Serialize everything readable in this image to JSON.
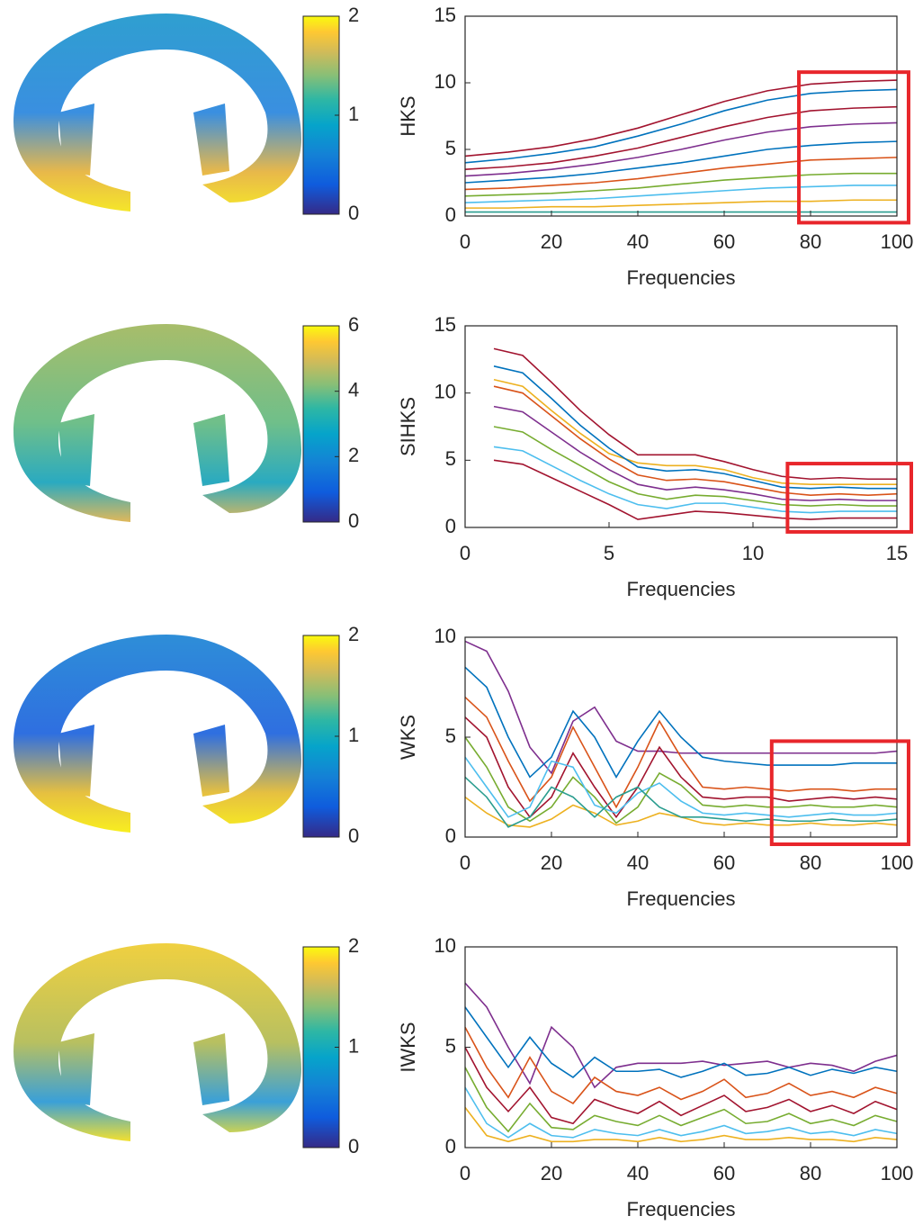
{
  "chart_data": [
    {
      "type": "line",
      "ylabel": "HKS",
      "xlabel": "Frequencies",
      "x": [
        0,
        10,
        20,
        30,
        40,
        50,
        60,
        70,
        80,
        90,
        100
      ],
      "xlim": [
        0,
        100
      ],
      "ylim": [
        0,
        15
      ],
      "xticks": [
        0,
        20,
        40,
        60,
        80,
        100
      ],
      "yticks": [
        0,
        5,
        10,
        15
      ],
      "colorbar": {
        "clim": [
          0,
          2
        ],
        "ticks": [
          0,
          1,
          2
        ]
      },
      "highlight": {
        "x": [
          77.3,
          102.7
        ],
        "y": [
          -0.5,
          10.8
        ],
        "color": "#e8262b"
      },
      "series": [
        {
          "color": "#A2142F",
          "values": [
            4.5,
            4.8,
            5.2,
            5.8,
            6.6,
            7.6,
            8.6,
            9.4,
            9.9,
            10.1,
            10.2
          ]
        },
        {
          "color": "#0072BD",
          "values": [
            4,
            4.3,
            4.7,
            5.2,
            6,
            6.9,
            7.9,
            8.7,
            9.2,
            9.4,
            9.5
          ]
        },
        {
          "color": "#A2142F",
          "values": [
            3.5,
            3.7,
            4,
            4.5,
            5.1,
            5.9,
            6.7,
            7.4,
            7.9,
            8.1,
            8.2
          ]
        },
        {
          "color": "#7E2F8E",
          "values": [
            3,
            3.2,
            3.5,
            3.9,
            4.4,
            5,
            5.7,
            6.3,
            6.7,
            6.9,
            7
          ]
        },
        {
          "color": "#0072BD",
          "values": [
            2.5,
            2.7,
            2.9,
            3.2,
            3.6,
            4,
            4.5,
            5,
            5.3,
            5.5,
            5.6
          ]
        },
        {
          "color": "#D95319",
          "values": [
            2,
            2.1,
            2.3,
            2.5,
            2.8,
            3.2,
            3.6,
            3.9,
            4.2,
            4.3,
            4.4
          ]
        },
        {
          "color": "#77AC30",
          "values": [
            1.5,
            1.6,
            1.7,
            1.9,
            2.1,
            2.4,
            2.7,
            2.9,
            3.1,
            3.2,
            3.2
          ]
        },
        {
          "color": "#4DBEEE",
          "values": [
            1,
            1.1,
            1.2,
            1.3,
            1.5,
            1.7,
            1.9,
            2.1,
            2.2,
            2.3,
            2.3
          ]
        },
        {
          "color": "#EDB120",
          "values": [
            0.6,
            0.6,
            0.7,
            0.7,
            0.8,
            0.9,
            1,
            1.1,
            1.1,
            1.2,
            1.2
          ]
        },
        {
          "color": "#2a9d8f",
          "values": [
            0.3,
            0.3,
            0.3,
            0.3,
            0.3,
            0.3,
            0.3,
            0.3,
            0.3,
            0.3,
            0.3
          ]
        }
      ]
    },
    {
      "type": "line",
      "ylabel": "SIHKS",
      "xlabel": "Frequencies",
      "x": [
        1,
        2,
        3,
        4,
        5,
        6,
        7,
        8,
        9,
        10,
        11,
        12,
        13,
        14,
        15
      ],
      "xlim": [
        0,
        15
      ],
      "ylim": [
        0,
        15
      ],
      "xticks": [
        0,
        5,
        10,
        15
      ],
      "yticks": [
        0,
        5,
        10,
        15
      ],
      "colorbar": {
        "clim": [
          0,
          6
        ],
        "ticks": [
          0,
          2,
          4,
          6
        ]
      },
      "highlight": {
        "x": [
          11.2,
          15.5
        ],
        "y": [
          -0.33,
          4.75
        ],
        "color": "#e8262b"
      },
      "series": [
        {
          "color": "#A2142F",
          "values": [
            13.3,
            12.8,
            10.8,
            8.7,
            6.9,
            5.4,
            5.4,
            5.4,
            4.9,
            4.3,
            3.8,
            3.6,
            3.7,
            3.6,
            3.6
          ]
        },
        {
          "color": "#EDB120",
          "values": [
            11,
            10.5,
            8.7,
            7,
            5.5,
            4.8,
            4.6,
            4.6,
            4.3,
            3.7,
            3.3,
            3.2,
            3.2,
            3.2,
            3.2
          ]
        },
        {
          "color": "#0072BD",
          "values": [
            12,
            11.5,
            9.6,
            7.6,
            5.9,
            4.5,
            4.2,
            4.3,
            4,
            3.5,
            3,
            2.9,
            3,
            2.9,
            2.9
          ]
        },
        {
          "color": "#D95319",
          "values": [
            10.5,
            10,
            8.3,
            6.6,
            5.1,
            3.9,
            3.5,
            3.6,
            3.4,
            3,
            2.6,
            2.4,
            2.5,
            2.4,
            2.5
          ]
        },
        {
          "color": "#7E2F8E",
          "values": [
            9,
            8.6,
            7.1,
            5.6,
            4.3,
            3.2,
            2.8,
            3,
            2.8,
            2.5,
            2.1,
            2,
            2.1,
            2,
            2
          ]
        },
        {
          "color": "#77AC30",
          "values": [
            7.5,
            7.1,
            5.8,
            4.6,
            3.4,
            2.5,
            2.1,
            2.4,
            2.3,
            2,
            1.7,
            1.6,
            1.7,
            1.6,
            1.6
          ]
        },
        {
          "color": "#4DBEEE",
          "values": [
            6,
            5.7,
            4.6,
            3.5,
            2.5,
            1.7,
            1.4,
            1.8,
            1.8,
            1.5,
            1.2,
            1.1,
            1.2,
            1.2,
            1.2
          ]
        },
        {
          "color": "#A2142F",
          "values": [
            5,
            4.7,
            3.7,
            2.7,
            1.7,
            0.6,
            0.9,
            1.2,
            1.1,
            0.9,
            0.7,
            0.6,
            0.7,
            0.7,
            0.7
          ]
        }
      ]
    },
    {
      "type": "line",
      "ylabel": "WKS",
      "xlabel": "Frequencies",
      "x": [
        0,
        5,
        10,
        15,
        20,
        25,
        30,
        35,
        40,
        45,
        50,
        55,
        60,
        65,
        70,
        75,
        80,
        85,
        90,
        95,
        100
      ],
      "xlim": [
        0,
        100
      ],
      "ylim": [
        0,
        10
      ],
      "xticks": [
        0,
        20,
        40,
        60,
        80,
        100
      ],
      "yticks": [
        0,
        5,
        10
      ],
      "colorbar": {
        "clim": [
          0,
          2
        ],
        "ticks": [
          0,
          1,
          2
        ]
      },
      "highlight": {
        "x": [
          71,
          102.7
        ],
        "y": [
          -0.36,
          4.8
        ],
        "color": "#e8262b"
      },
      "series": [
        {
          "color": "#7E2F8E",
          "values": [
            9.8,
            9.3,
            7.3,
            4.5,
            3.2,
            5.8,
            6.5,
            4.8,
            4.3,
            4.3,
            4.2,
            4.2,
            4.2,
            4.2,
            4.2,
            4.2,
            4.2,
            4.2,
            4.2,
            4.2,
            4.3
          ]
        },
        {
          "color": "#0072BD",
          "values": [
            8.5,
            7.5,
            5,
            3,
            4,
            6.3,
            5,
            3,
            4.8,
            6.3,
            5,
            4,
            3.8,
            3.7,
            3.6,
            3.6,
            3.6,
            3.6,
            3.7,
            3.7,
            3.7
          ]
        },
        {
          "color": "#D95319",
          "values": [
            7,
            6,
            3.8,
            1.8,
            3,
            5.5,
            3.5,
            1.5,
            3.5,
            5.8,
            4,
            2.5,
            2.4,
            2.5,
            2.4,
            2.3,
            2.4,
            2.4,
            2.3,
            2.4,
            2.4
          ]
        },
        {
          "color": "#A2142F",
          "values": [
            6,
            5,
            2.5,
            1,
            2,
            4.2,
            2.5,
            1,
            2.5,
            4.5,
            3,
            2,
            1.9,
            2,
            2,
            1.8,
            1.9,
            2,
            1.9,
            2,
            1.9
          ]
        },
        {
          "color": "#77AC30",
          "values": [
            5,
            3.5,
            1.5,
            0.8,
            1.5,
            3,
            2,
            0.7,
            1.5,
            3.2,
            2.6,
            1.6,
            1.5,
            1.6,
            1.5,
            1.5,
            1.6,
            1.5,
            1.5,
            1.6,
            1.5
          ]
        },
        {
          "color": "#4DBEEE",
          "values": [
            4,
            2.5,
            1,
            1.5,
            3.8,
            3.5,
            1.6,
            1.2,
            2.2,
            2.7,
            1.8,
            1.2,
            1.1,
            1.2,
            1.1,
            1,
            1.1,
            1.2,
            1.1,
            1.1,
            1.2
          ]
        },
        {
          "color": "#EDB120",
          "values": [
            2,
            1.2,
            0.6,
            0.5,
            0.9,
            1.6,
            1.2,
            0.6,
            0.8,
            1.2,
            1,
            0.7,
            0.6,
            0.7,
            0.6,
            0.6,
            0.7,
            0.6,
            0.6,
            0.7,
            0.6
          ]
        },
        {
          "color": "#2a9d8f",
          "values": [
            3,
            2,
            0.5,
            1,
            2.5,
            2,
            1,
            2,
            2.5,
            1.5,
            1,
            1,
            0.9,
            0.8,
            0.9,
            0.8,
            0.8,
            0.9,
            0.8,
            0.8,
            0.9
          ]
        }
      ]
    },
    {
      "type": "line",
      "ylabel": "IWKS",
      "xlabel": "Frequencies",
      "x": [
        0,
        5,
        10,
        15,
        20,
        25,
        30,
        35,
        40,
        45,
        50,
        55,
        60,
        65,
        70,
        75,
        80,
        85,
        90,
        95,
        100
      ],
      "xlim": [
        0,
        100
      ],
      "ylim": [
        0,
        10
      ],
      "xticks": [
        0,
        20,
        40,
        60,
        80,
        100
      ],
      "yticks": [
        0,
        5,
        10
      ],
      "colorbar": {
        "clim": [
          0,
          2
        ],
        "ticks": [
          0,
          1,
          2
        ]
      },
      "series": [
        {
          "color": "#7E2F8E",
          "values": [
            8.2,
            7,
            5,
            3.2,
            6,
            5,
            3,
            4,
            4.2,
            4.2,
            4.2,
            4.3,
            4.1,
            4.2,
            4.3,
            4,
            4.2,
            4.1,
            3.8,
            4.3,
            4.6
          ]
        },
        {
          "color": "#0072BD",
          "values": [
            7,
            5.5,
            4,
            5.5,
            4.2,
            3.5,
            4.5,
            3.8,
            3.8,
            3.9,
            3.5,
            3.8,
            4.2,
            3.6,
            3.7,
            4,
            3.6,
            3.9,
            3.7,
            4,
            3.8
          ]
        },
        {
          "color": "#D95319",
          "values": [
            6,
            4,
            2.5,
            4.5,
            2.8,
            2.2,
            3.5,
            2.8,
            2.6,
            3,
            2.4,
            2.8,
            3.4,
            2.5,
            2.7,
            3.2,
            2.6,
            2.8,
            2.5,
            3,
            2.7
          ]
        },
        {
          "color": "#A2142F",
          "values": [
            5,
            3,
            1.8,
            3,
            1.5,
            1.2,
            2.4,
            2,
            1.7,
            2.3,
            1.6,
            2.1,
            2.6,
            1.8,
            2,
            2.4,
            1.8,
            2.1,
            1.7,
            2.3,
            1.9
          ]
        },
        {
          "color": "#77AC30",
          "values": [
            4,
            2,
            0.8,
            2.2,
            1,
            0.9,
            1.6,
            1.3,
            1.1,
            1.6,
            1.1,
            1.5,
            1.9,
            1.2,
            1.3,
            1.7,
            1.2,
            1.4,
            1.1,
            1.6,
            1.3
          ]
        },
        {
          "color": "#4DBEEE",
          "values": [
            3,
            1.2,
            0.5,
            1.2,
            0.6,
            0.5,
            0.9,
            0.7,
            0.6,
            0.9,
            0.6,
            0.8,
            1.1,
            0.7,
            0.8,
            1,
            0.7,
            0.8,
            0.6,
            0.9,
            0.7
          ]
        },
        {
          "color": "#EDB120",
          "values": [
            2,
            0.6,
            0.3,
            0.6,
            0.3,
            0.3,
            0.4,
            0.4,
            0.3,
            0.5,
            0.3,
            0.4,
            0.6,
            0.4,
            0.4,
            0.5,
            0.4,
            0.4,
            0.3,
            0.5,
            0.4
          ]
        }
      ]
    }
  ]
}
